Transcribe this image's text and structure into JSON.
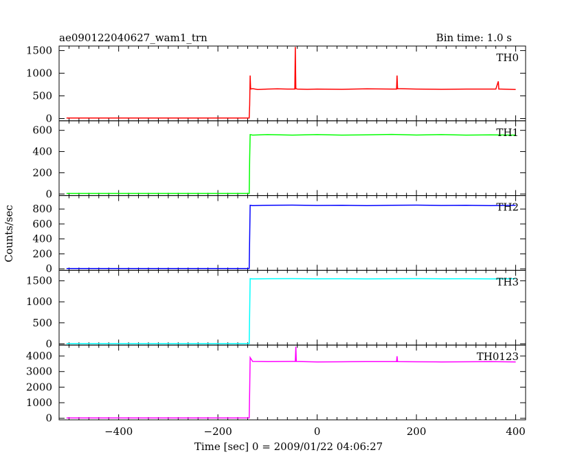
{
  "header": {
    "title": "ae090122040627_wam1_trn",
    "bin_time": "Bin time: 1.0 s"
  },
  "chart_data": {
    "type": "line",
    "ylabel": "Counts/sec",
    "xlabel": "Time [sec] 0 = 2009/01/22 04:06:27",
    "xlim": [
      -520,
      420
    ],
    "x_ticks": [
      -400,
      -200,
      0,
      200,
      400
    ],
    "shared_x": true,
    "panels": [
      {
        "name": "TH0",
        "color": "#ff0000",
        "ylim": [
          -50,
          1600
        ],
        "y_ticks": [
          0,
          500,
          1000,
          1500
        ],
        "x": [
          -505,
          -137,
          -136,
          -135,
          -134,
          -130,
          -120,
          -100,
          -80,
          -60,
          -45,
          -44,
          -43,
          -40,
          -20,
          0,
          50,
          100,
          150,
          160,
          161,
          162,
          200,
          250,
          300,
          360,
          365,
          366,
          370,
          400
        ],
        "values": [
          10,
          10,
          300,
          950,
          650,
          660,
          640,
          650,
          655,
          650,
          650,
          1580,
          660,
          650,
          645,
          650,
          645,
          655,
          650,
          650,
          950,
          660,
          650,
          645,
          650,
          650,
          820,
          650,
          650,
          640
        ]
      },
      {
        "name": "TH1",
        "color": "#00ff00",
        "ylim": [
          -15,
          690
        ],
        "y_ticks": [
          0,
          200,
          400,
          600
        ],
        "x": [
          -505,
          -137,
          -136,
          -135,
          -130,
          -100,
          -50,
          0,
          50,
          100,
          150,
          200,
          250,
          300,
          350,
          400
        ],
        "values": [
          5,
          5,
          340,
          560,
          555,
          560,
          555,
          560,
          555,
          558,
          562,
          556,
          560,
          555,
          558,
          555
        ]
      },
      {
        "name": "TH2",
        "color": "#0000ff",
        "ylim": [
          -20,
          980
        ],
        "y_ticks": [
          0,
          200,
          400,
          600,
          800
        ],
        "x": [
          -505,
          -137,
          -136,
          -135,
          -130,
          -100,
          -50,
          0,
          50,
          100,
          150,
          200,
          250,
          300,
          350,
          400
        ],
        "values": [
          5,
          5,
          420,
          850,
          845,
          850,
          852,
          848,
          850,
          845,
          850,
          852,
          848,
          850,
          845,
          850
        ]
      },
      {
        "name": "TH3",
        "color": "#00ffff",
        "ylim": [
          -30,
          1750
        ],
        "y_ticks": [
          0,
          500,
          1000,
          1500
        ],
        "x": [
          -505,
          -137,
          -136,
          -135,
          -130,
          -100,
          -50,
          0,
          50,
          100,
          150,
          200,
          250,
          300,
          350,
          400
        ],
        "values": [
          5,
          5,
          760,
          1550,
          1545,
          1550,
          1552,
          1548,
          1550,
          1545,
          1550,
          1552,
          1548,
          1550,
          1545,
          1550
        ]
      },
      {
        "name": "TH0123",
        "color": "#ff00ff",
        "ylim": [
          -100,
          4700
        ],
        "y_ticks": [
          0,
          1000,
          2000,
          3000,
          4000
        ],
        "x": [
          -505,
          -137,
          -136,
          -135,
          -130,
          -100,
          -50,
          -44,
          -43,
          -42,
          0,
          50,
          100,
          160,
          161,
          162,
          200,
          250,
          300,
          350,
          400
        ],
        "values": [
          20,
          20,
          1800,
          3900,
          3650,
          3640,
          3650,
          3650,
          4600,
          3650,
          3620,
          3630,
          3640,
          3640,
          3980,
          3640,
          3630,
          3620,
          3630,
          3640,
          3620
        ]
      }
    ]
  }
}
